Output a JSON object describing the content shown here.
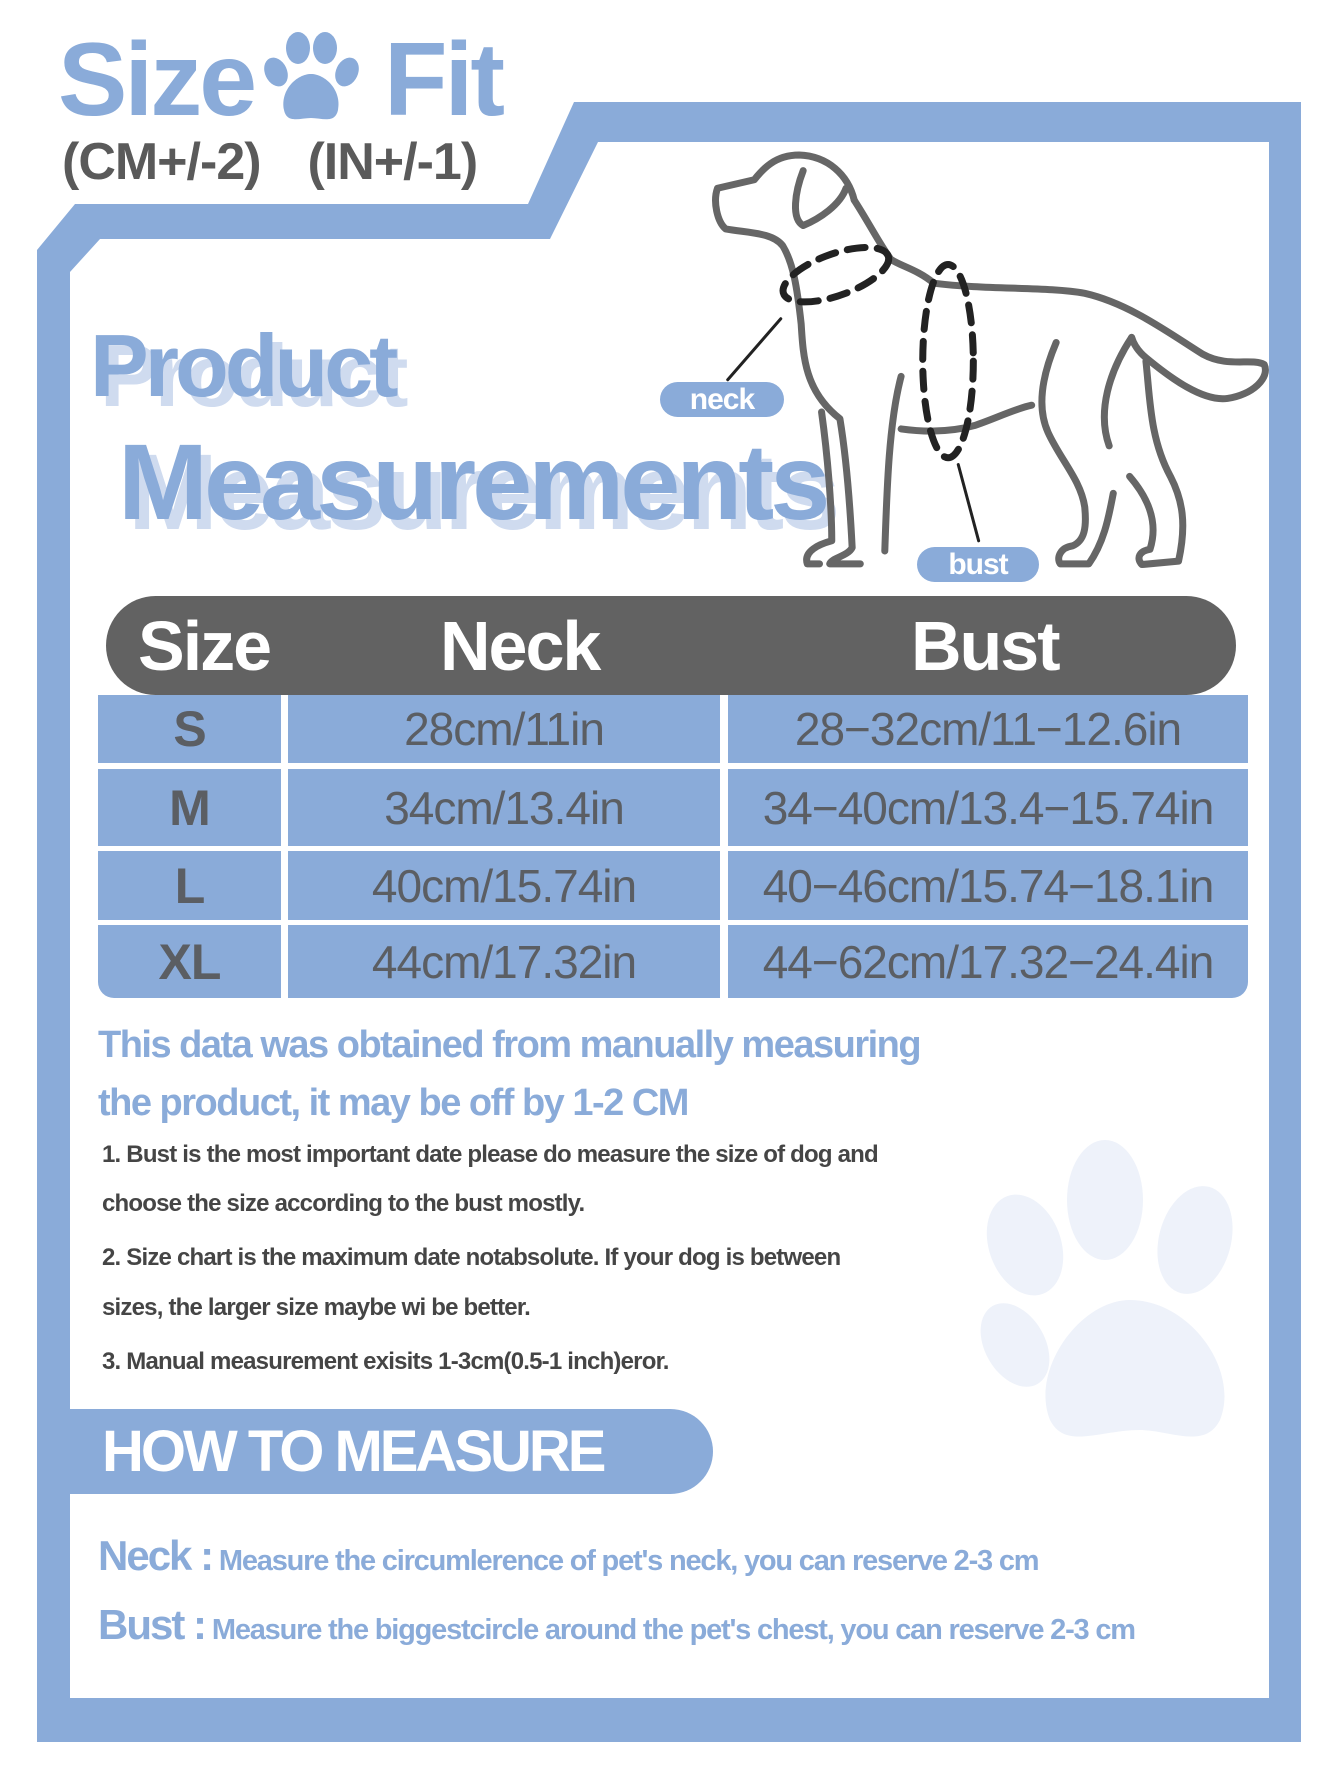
{
  "header": {
    "title_left": "Size",
    "title_right": "Fit",
    "title_icon": "paw-icon",
    "subtitle": "(CM+/-2)  (IN+/-1)"
  },
  "heading": {
    "line1": "Product",
    "line2": "Measurements"
  },
  "diagram": {
    "neck_label": "neck",
    "bust_label": "bust"
  },
  "table": {
    "headers": [
      "Size",
      "Neck",
      "Bust"
    ],
    "rows": [
      {
        "size": "S",
        "neck": "28cm/11in",
        "bust": "28−32cm/11−12.6in"
      },
      {
        "size": "M",
        "neck": "34cm/13.4in",
        "bust": "34−40cm/13.4−15.74in"
      },
      {
        "size": "L",
        "neck": "40cm/15.74in",
        "bust": "40−46cm/15.74−18.1in"
      },
      {
        "size": "XL",
        "neck": "44cm/17.32in",
        "bust": "44−62cm/17.32−24.4in"
      }
    ]
  },
  "note": {
    "line1": "This data was obtained from manually measuring",
    "line2": "the product, it may be off by 1-2 CM"
  },
  "items": [
    "1. Bust is the most important date please do measure the size of dog and",
    "choose the size according to the bust mostly.",
    "2. Size chart is the maximum date notabsolute. If your dog is between",
    "sizes, the larger size maybe wi be better.",
    "3. Manual measurement exisits 1-3cm(0.5-1 inch)eror."
  ],
  "how_to": {
    "title": "HOW TO MEASURE",
    "neck_label": "Neck :",
    "neck_text": " Measure the circumlerence of pet's neck, you can reserve 2-3 cm",
    "bust_label": "Bust :",
    "bust_text": " Measure the biggestcircle around the pet's chest, you can reserve 2-3 cm"
  },
  "colors": {
    "accent_blue": "#8aabd9",
    "header_gray": "#626262",
    "text_gray": "#5b5e63"
  }
}
